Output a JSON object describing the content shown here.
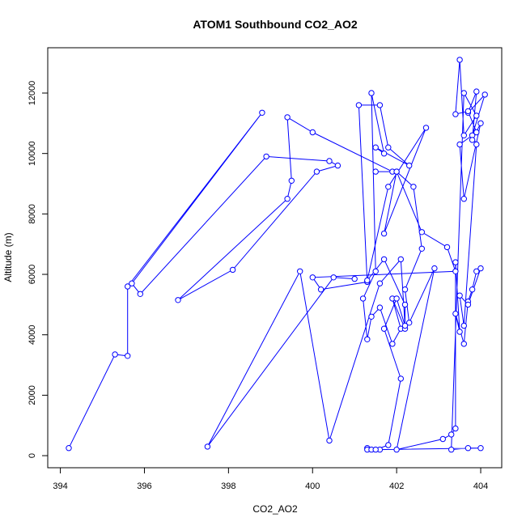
{
  "chart_data": {
    "type": "line",
    "title": "ATOM1 Southbound CO2_AO2",
    "xlabel": "CO2_AO2",
    "ylabel": "Altitude (m)",
    "xlim": [
      393.7,
      404.5
    ],
    "ylim": [
      -400,
      13500
    ],
    "xticks": [
      394,
      396,
      398,
      400,
      402,
      404
    ],
    "yticks": [
      0,
      2000,
      4000,
      6000,
      8000,
      10000,
      12000
    ],
    "grid": false,
    "legend": "none",
    "marker": "open-circle",
    "color": "#0000ff",
    "series": [
      {
        "x": [
          394.2,
          395.3,
          395.6,
          395.6,
          398.8,
          395.7,
          395.9,
          398.9,
          400.4,
          400.6,
          400.1,
          398.1,
          396.8,
          399.4,
          399.5,
          399.4,
          400.0,
          401.9,
          401.5,
          402.0,
          402.6,
          403.2,
          403.4,
          400.0,
          400.2,
          401.3,
          401.1,
          401.6,
          401.8,
          402.3,
          401.5,
          401.7,
          401.4,
          401.5,
          401.2,
          401.3,
          401.4,
          401.6,
          401.9,
          402.1,
          401.9,
          402.2,
          402.2,
          401.7,
          401.3,
          401.8,
          402.7,
          401.7,
          402.0,
          402.4,
          402.6,
          402.2,
          402.3,
          402.9,
          402.0,
          403.1,
          403.3,
          403.4,
          403.4,
          403.5,
          403.4,
          403.6,
          403.7,
          403.8,
          403.9,
          404.0,
          403.7,
          403.5,
          403.6,
          403.9,
          403.8,
          404.1,
          403.7,
          403.9,
          403.8,
          404.0,
          403.6,
          403.5,
          403.9,
          403.7,
          403.4,
          403.5,
          403.6,
          403.9,
          403.6,
          403.3,
          403.7,
          404.0,
          401.6,
          401.3,
          401.3,
          401.4,
          401.5,
          401.8,
          402.1,
          401.7,
          402.0,
          402.2,
          402.1,
          401.6,
          400.4,
          399.7,
          397.5,
          400.5,
          401.0
        ],
        "y": [
          250,
          3350,
          3300,
          5600,
          11350,
          5700,
          5350,
          9900,
          9750,
          9600,
          9400,
          6150,
          5150,
          8500,
          9100,
          11200,
          10700,
          9400,
          9400,
          9400,
          7400,
          6900,
          6100,
          5900,
          5500,
          5750,
          11600,
          11600,
          10200,
          9600,
          10200,
          10000,
          12000,
          6100,
          5200,
          3850,
          4600,
          4900,
          3700,
          4200,
          5200,
          4200,
          5000,
          6500,
          5800,
          8900,
          10850,
          7350,
          9400,
          8900,
          6850,
          5500,
          4400,
          6200,
          200,
          550,
          700,
          900,
          6400,
          4100,
          4700,
          3700,
          5100,
          5500,
          6100,
          6200,
          5000,
          5300,
          4300,
          10300,
          10600,
          11950,
          11350,
          12050,
          10450,
          11000,
          8500,
          10300,
          10700,
          11400,
          11300,
          13100,
          10600,
          11250,
          12000,
          200,
          250,
          250,
          200,
          250,
          200,
          200,
          200,
          350,
          2550,
          4200,
          5200,
          4300,
          6500,
          5700,
          500,
          6100,
          300,
          5900,
          5850
        ]
      }
    ]
  }
}
